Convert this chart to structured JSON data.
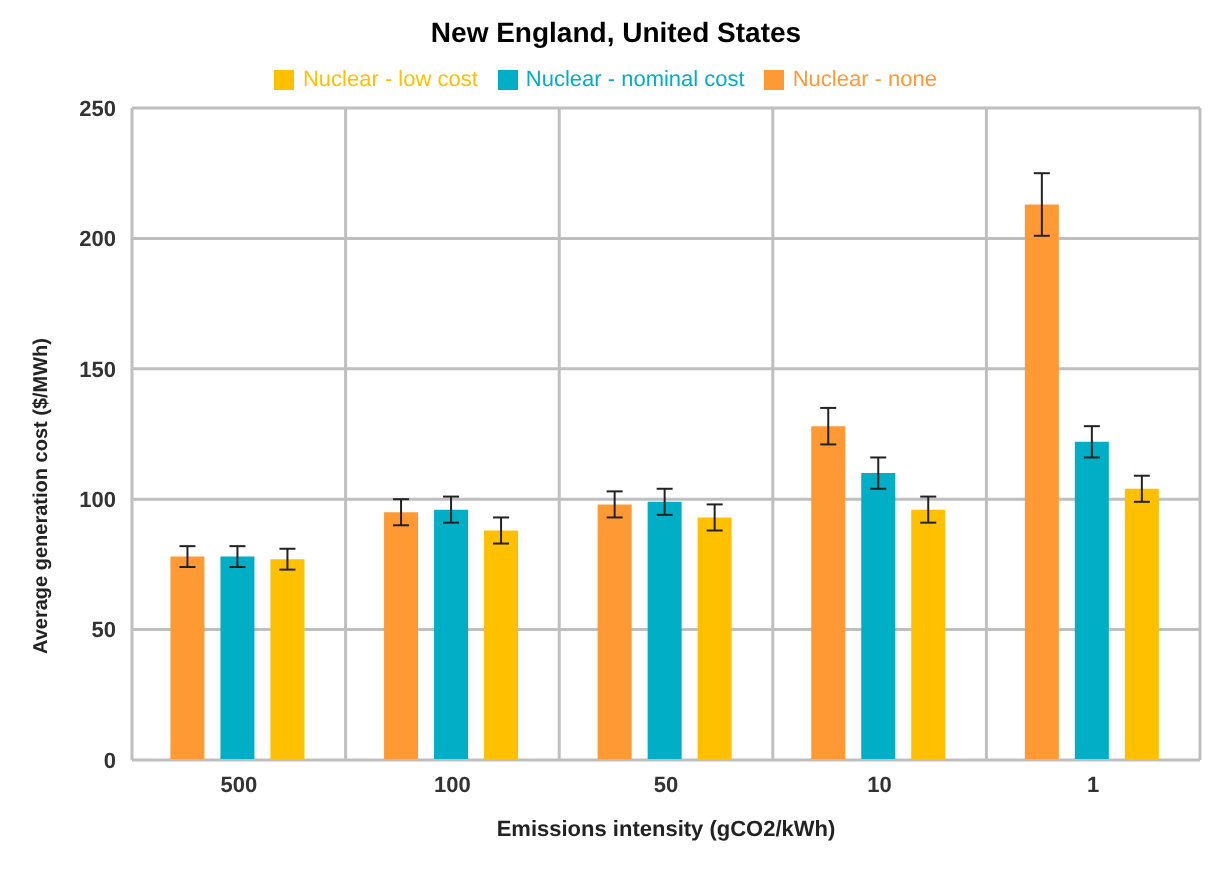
{
  "chart_data": {
    "type": "bar",
    "title": "New England, United States",
    "xlabel": "Emissions intensity (gCO2/kWh)",
    "ylabel": "Average generation cost ($/MWh)",
    "categories": [
      "500",
      "100",
      "50",
      "10",
      "1"
    ],
    "series": [
      {
        "name": "Nuclear - none",
        "color": "#ff9933",
        "values": [
          78,
          95,
          98,
          128,
          213
        ],
        "errors": [
          4,
          5,
          5,
          7,
          12
        ]
      },
      {
        "name": "Nuclear - nominal cost",
        "color": "#00aec6",
        "values": [
          78,
          96,
          99,
          110,
          122
        ],
        "errors": [
          4,
          5,
          5,
          6,
          6
        ]
      },
      {
        "name": "Nuclear - low cost",
        "color": "#ffc000",
        "values": [
          77,
          88,
          93,
          96,
          104
        ],
        "errors": [
          4,
          5,
          5,
          5,
          5
        ]
      }
    ],
    "ylim": [
      0,
      250
    ],
    "yticks": [
      0,
      50,
      100,
      150,
      200,
      250
    ],
    "grid": true,
    "legend": "top"
  }
}
